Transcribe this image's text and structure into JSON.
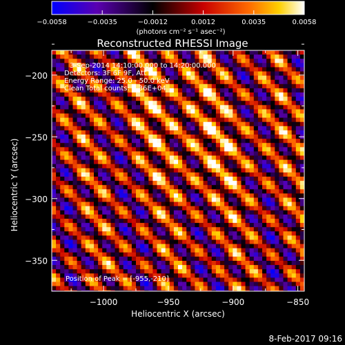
{
  "chart_data": {
    "type": "heatmap",
    "title": "Reconstructed RHESSI Image",
    "xlabel": "Heliocentric X (arcsec)",
    "ylabel": "Heliocentric Y (arcsec)",
    "xlim": [
      -1040,
      -845
    ],
    "ylim": [
      -375,
      -180
    ],
    "x_ticks": [
      -1000,
      -950,
      -900,
      -850
    ],
    "y_ticks": [
      -200,
      -250,
      -300,
      -350
    ],
    "x_tick_labels": [
      "−1000",
      "−950",
      "−900",
      "−850"
    ],
    "y_tick_labels": [
      "−200",
      "−250",
      "−300",
      "−350"
    ],
    "colorbar": {
      "min": -0.0058,
      "max": 0.0058,
      "tick_labels": [
        "−0.0058",
        "−0.0035",
        "−0.0012",
        "0.0012",
        "0.0035",
        "0.0058"
      ],
      "unit_label": "(photons cm⁻² s⁻¹ asec⁻²)",
      "colormap": [
        "#0000ff",
        "#5a00b0",
        "#000000",
        "#c80000",
        "#ff6a00",
        "#ffd000",
        "#ffffff"
      ]
    },
    "annotations": [
      "3-Sep-2014 14:10:00.000 to 14:20:00.000",
      "Detectors: 3F 6F 9F, Att 1",
      "Energy Range: 25.0 - 50.0 keV",
      "Clean     Total counts: 1.36E+04"
    ],
    "peak_label": "Position of Peak = [-955,-210]",
    "peak": [
      -955,
      -210
    ],
    "limb_color": "#ffffff"
  },
  "footer": {
    "timestamp": "8-Feb-2017 09:16"
  }
}
